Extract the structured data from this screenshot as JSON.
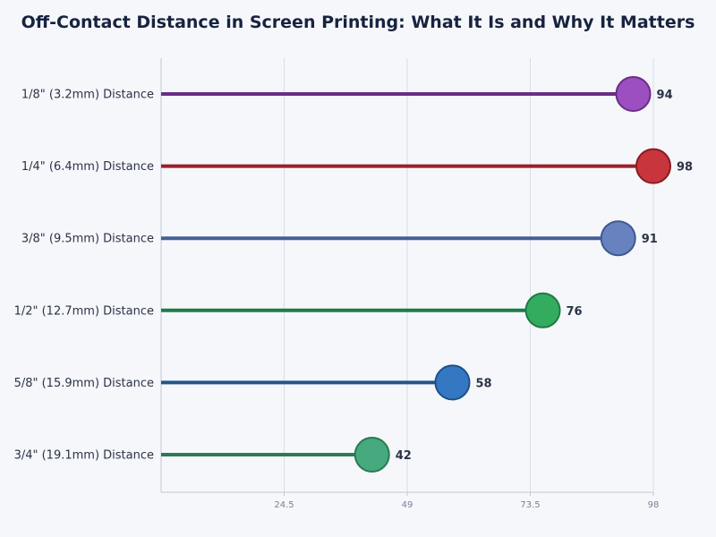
{
  "chart_data": {
    "type": "lollipop",
    "title": "Off-Contact Distance in Screen Printing: What It Is and Why It Matters",
    "xlabel": "",
    "ylabel": "",
    "xlim": [
      0,
      98
    ],
    "x_ticks": [
      24.5,
      49,
      73.5,
      98
    ],
    "x_tick_labels": [
      "24.5",
      "49",
      "73.5",
      "98"
    ],
    "grid": "vertical",
    "categories": [
      "1/8\" (3.2mm) Distance",
      "1/4\" (6.4mm) Distance",
      "3/8\" (9.5mm) Distance",
      "1/2\" (12.7mm) Distance",
      "5/8\" (15.9mm) Distance",
      "3/4\" (19.1mm) Distance"
    ],
    "values": [
      94,
      98,
      91,
      76,
      58,
      42
    ],
    "value_labels": [
      "94",
      "98",
      "91",
      "76",
      "58",
      "42"
    ],
    "colors": [
      {
        "line": "#6b2d86",
        "fill": "#9b4fc0",
        "stroke": "#6b2d86"
      },
      {
        "line": "#9a1f28",
        "fill": "#c9353c",
        "stroke": "#8a1b22"
      },
      {
        "line": "#455f95",
        "fill": "#6882c0",
        "stroke": "#3f5a8f"
      },
      {
        "line": "#1f7a4a",
        "fill": "#33ac5f",
        "stroke": "#1f7a44"
      },
      {
        "line": "#25548c",
        "fill": "#3478c4",
        "stroke": "#1f4f86"
      },
      {
        "line": "#2a7a52",
        "fill": "#46aa7e",
        "stroke": "#2a7a52"
      }
    ]
  }
}
